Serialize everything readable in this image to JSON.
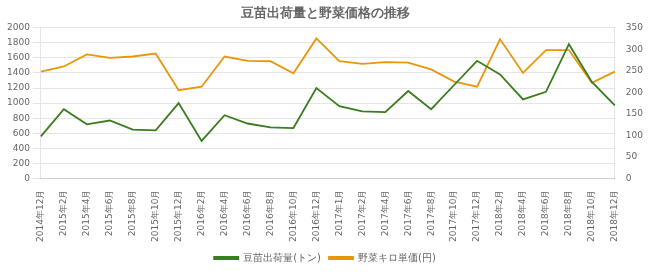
{
  "chart_data": {
    "type": "line",
    "title": "豆苗出荷量と野菜価格の推移",
    "categories": [
      "2014年12月",
      "2015年2月",
      "2015年4月",
      "2015年6月",
      "2015年8月",
      "2015年10月",
      "2015年12月",
      "2016年2月",
      "2016年4月",
      "2016年6月",
      "2016年8月",
      "2016年10月",
      "2016年12月",
      "2017年1月",
      "2017年2月",
      "2017年4月",
      "2017年6月",
      "2017年8月",
      "2017年10月",
      "2017年12月",
      "2018年2月",
      "2018年4月",
      "2018年6月",
      "2018年8月",
      "2018年10月",
      "2018年12月"
    ],
    "series": [
      {
        "name": "豆苗出荷量(トン)",
        "color": "#3a7d1e",
        "axis": "y",
        "values": [
          560,
          920,
          720,
          770,
          650,
          640,
          1000,
          500,
          840,
          730,
          680,
          670,
          1200,
          960,
          890,
          880,
          1160,
          920,
          1240,
          1560,
          1380,
          1050,
          1150,
          1780,
          1280,
          970
        ]
      },
      {
        "name": "野菜キロ単価(円)",
        "color": "#e8960a",
        "axis": "y2",
        "values": [
          248,
          260,
          288,
          280,
          283,
          290,
          205,
          213,
          283,
          273,
          272,
          244,
          325,
          272,
          266,
          270,
          269,
          253,
          225,
          213,
          323,
          245,
          298,
          298,
          222,
          248
        ]
      }
    ],
    "ylim": [
      0,
      2000
    ],
    "yticks": [
      0,
      200,
      400,
      600,
      800,
      1000,
      1200,
      1400,
      1600,
      1800,
      2000
    ],
    "y2lim": [
      0,
      350
    ],
    "y2ticks": [
      0,
      50,
      100,
      150,
      200,
      250,
      300,
      350
    ],
    "grid": true,
    "legend": "bottom"
  }
}
